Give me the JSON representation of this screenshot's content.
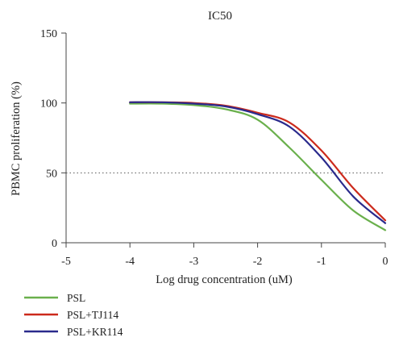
{
  "chart_data": {
    "type": "line",
    "title": "IC50",
    "xlabel": "Log drug concentration (uM)",
    "ylabel": "PBMC proliferation (%)",
    "xlim": [
      -5,
      0
    ],
    "ylim": [
      0,
      150
    ],
    "x_ticks": [
      "-5",
      "-4",
      "-3",
      "-2",
      "-1",
      "0"
    ],
    "y_ticks": [
      "0",
      "50",
      "100",
      "150"
    ],
    "reference_line": {
      "y": 50,
      "style": "dotted"
    },
    "legend_position": "bottom-left",
    "grid": false,
    "x": [
      -4,
      -3.5,
      -3,
      -2.5,
      -2,
      -1.5,
      -1,
      -0.5,
      0
    ],
    "series": [
      {
        "name": "PSL",
        "color": "#6ab04c",
        "values": [
          99.5,
          99.5,
          98.5,
          95.5,
          88,
          68,
          45,
          23,
          9
        ]
      },
      {
        "name": "PSL+TJ114",
        "color": "#cc2a1c",
        "values": [
          100.5,
          100.5,
          100,
          98,
          93,
          86,
          66,
          39,
          16
        ]
      },
      {
        "name": "PSL+KR114",
        "color": "#2a2a8c",
        "values": [
          100.5,
          100.5,
          99.5,
          97.5,
          92,
          83,
          61,
          33,
          14
        ]
      }
    ]
  }
}
